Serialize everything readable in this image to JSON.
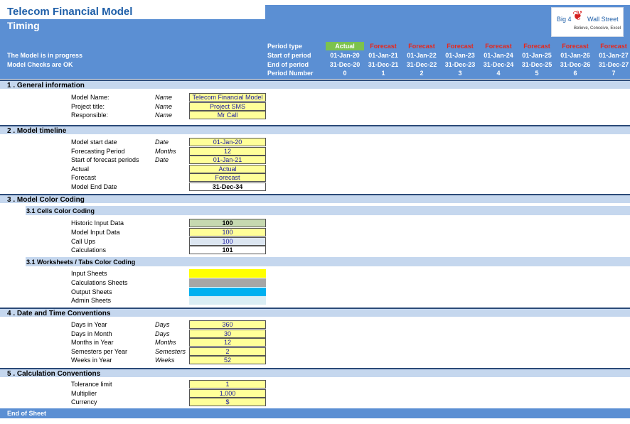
{
  "header": {
    "title": "Telecom Financial Model",
    "sheet": "Timing",
    "status1": "The Model is in progress",
    "status2": "Model Checks are OK"
  },
  "logo": {
    "left": "Big 4",
    "right": "Wall Street",
    "tagline": "Believe, Conceive, Excel"
  },
  "periods": {
    "labels": [
      "Period type",
      "Start of period",
      "End of period",
      "Period Number"
    ],
    "columns": [
      {
        "type": "Actual",
        "start": "01-Jan-20",
        "end": "31-Dec-20",
        "num": "0"
      },
      {
        "type": "Forecast",
        "start": "01-Jan-21",
        "end": "31-Dec-21",
        "num": "1"
      },
      {
        "type": "Forecast",
        "start": "01-Jan-22",
        "end": "31-Dec-22",
        "num": "2"
      },
      {
        "type": "Forecast",
        "start": "01-Jan-23",
        "end": "31-Dec-23",
        "num": "3"
      },
      {
        "type": "Forecast",
        "start": "01-Jan-24",
        "end": "31-Dec-24",
        "num": "4"
      },
      {
        "type": "Forecast",
        "start": "01-Jan-25",
        "end": "31-Dec-25",
        "num": "5"
      },
      {
        "type": "Forecast",
        "start": "01-Jan-26",
        "end": "31-Dec-26",
        "num": "6"
      },
      {
        "type": "Forecast",
        "start": "01-Jan-27",
        "end": "31-Dec-27",
        "num": "7"
      }
    ]
  },
  "s1": {
    "title": "1 .  General information",
    "rows": [
      {
        "label": "Model Name:",
        "unit": "Name",
        "value": "Telecom Financial Model"
      },
      {
        "label": "Project title:",
        "unit": "Name",
        "value": "Project SMS"
      },
      {
        "label": "Responsible:",
        "unit": "Name",
        "value": "Mr Call"
      }
    ]
  },
  "s2": {
    "title": "2 .  Model timeline",
    "rows": [
      {
        "label": "Model start date",
        "unit": "Date",
        "value": "01-Jan-20"
      },
      {
        "label": "Forecasting Period",
        "unit": "Months",
        "value": "12"
      },
      {
        "label": "Start of forecast periods",
        "unit": "Date",
        "value": "01-Jan-21"
      },
      {
        "label": "Actual",
        "unit": "",
        "value": "Actual"
      },
      {
        "label": "Forecast",
        "unit": "",
        "value": "Forecast"
      },
      {
        "label": "Model End Date",
        "unit": "",
        "value": "31-Dec-34"
      }
    ]
  },
  "s3": {
    "title": "3 .  Model Color Coding",
    "sub1": "3.1 Cells Color Coding",
    "cells": [
      {
        "label": "Historic Input Data",
        "value": "100"
      },
      {
        "label": "Model Input Data",
        "value": "100"
      },
      {
        "label": "Call Ups",
        "value": "100"
      },
      {
        "label": "Calculations",
        "value": "101"
      }
    ],
    "sub2": "3.1 Worksheets / Tabs Color Coding",
    "tabs": [
      {
        "label": "Input Sheets",
        "color": "#ffff00"
      },
      {
        "label": "Calculations Sheets",
        "color": "#a6a6a6"
      },
      {
        "label": "Output Sheets",
        "color": "#00b0f0"
      },
      {
        "label": "Admin Sheets",
        "color": "#dbeef4"
      }
    ]
  },
  "s4": {
    "title": "4 .  Date and Time Conventions",
    "rows": [
      {
        "label": "Days in Year",
        "unit": "Days",
        "value": "360"
      },
      {
        "label": "Days in Month",
        "unit": "Days",
        "value": "30"
      },
      {
        "label": "Months in Year",
        "unit": "Months",
        "value": "12"
      },
      {
        "label": "Semesters per Year",
        "unit": "Semesters",
        "value": "2"
      },
      {
        "label": "Weeks in Year",
        "unit": "Weeks",
        "value": "52"
      }
    ]
  },
  "s5": {
    "title": "5 .  Calculation Conventions",
    "rows": [
      {
        "label": "Tolerance limit",
        "value": "1"
      },
      {
        "label": "Multiplier",
        "value": "1,000"
      },
      {
        "label": "Currency",
        "value": "$"
      }
    ]
  },
  "footer": "End of Sheet"
}
